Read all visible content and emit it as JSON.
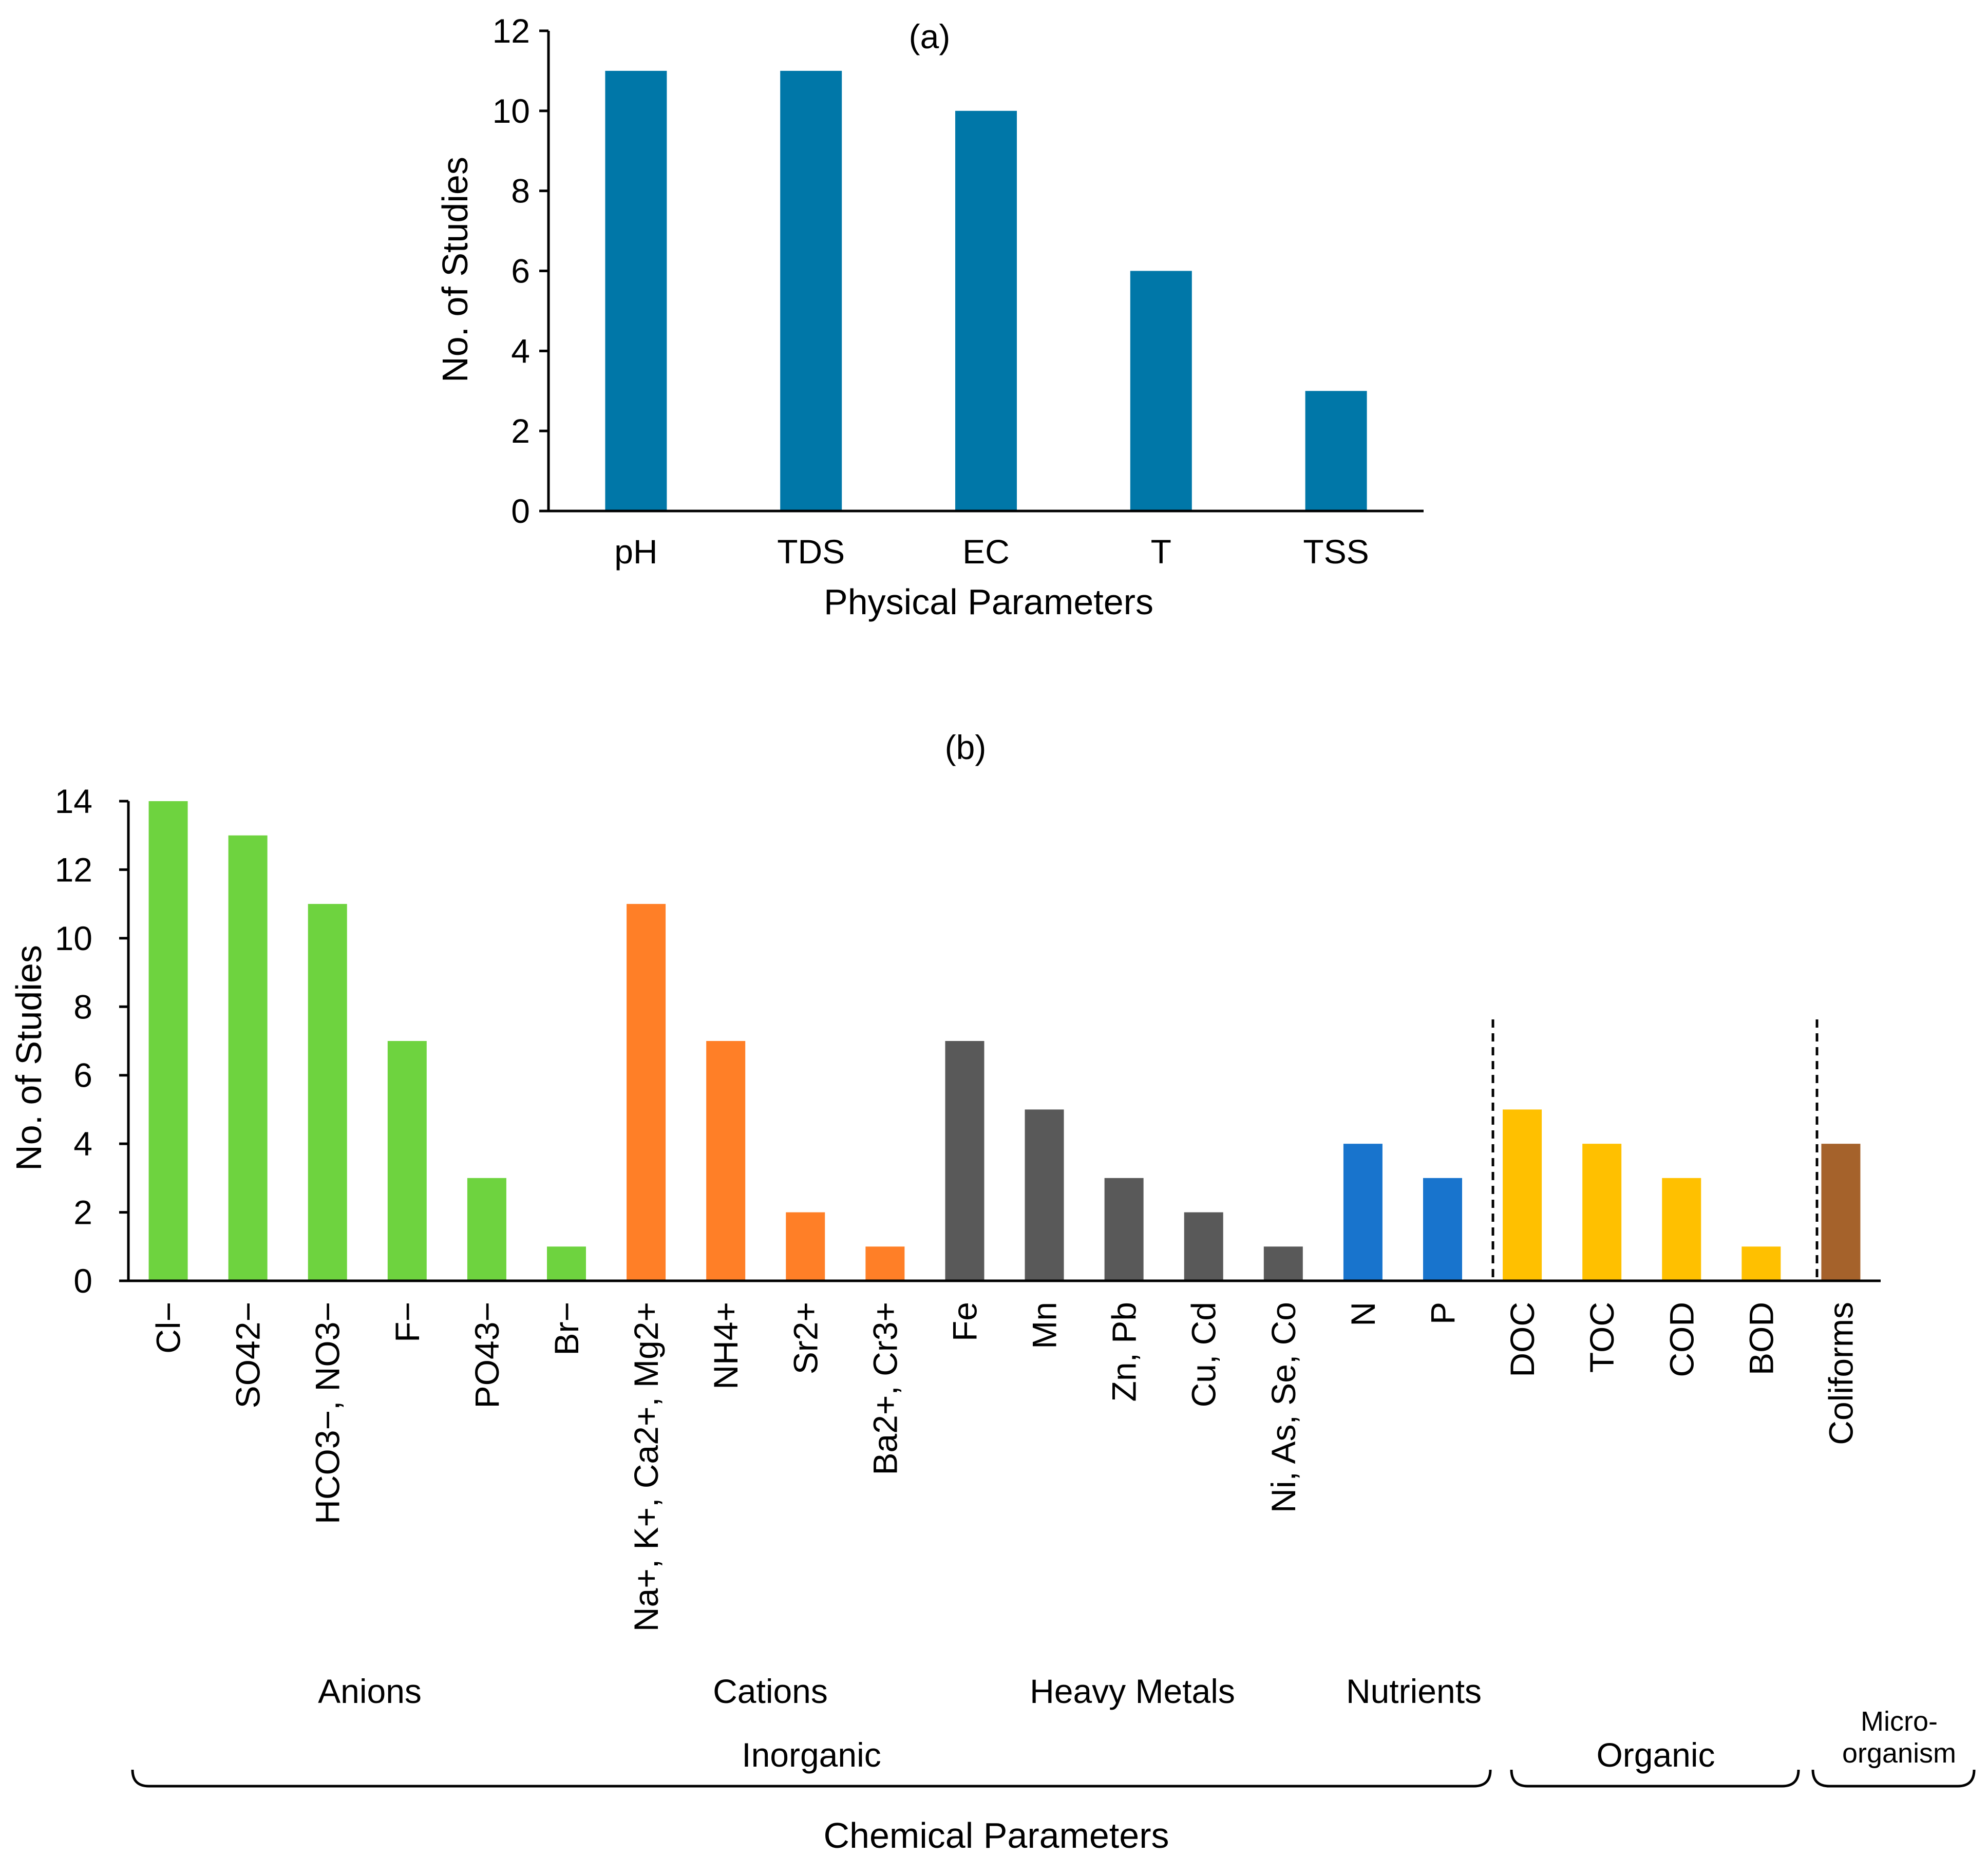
{
  "chart_data": [
    {
      "type": "bar",
      "panel_label": "(a)",
      "xlabel": "Physical Parameters",
      "ylabel": "No. of Studies",
      "ylim": [
        0,
        12
      ],
      "yticks": [
        "0",
        "2",
        "4",
        "6",
        "8",
        "10",
        "12"
      ],
      "grid": false,
      "categories": [
        "pH",
        "TDS",
        "EC",
        "T",
        "TSS"
      ],
      "values": [
        11,
        11,
        10,
        6,
        3
      ],
      "color": "#0077A8"
    },
    {
      "type": "bar",
      "panel_label": "(b)",
      "xlabel": "Chemical Parameters",
      "ylabel": "No. of Studies",
      "ylim": [
        0,
        14
      ],
      "yticks": [
        "0",
        "2",
        "4",
        "6",
        "8",
        "10",
        "12",
        "14"
      ],
      "grid": false,
      "categories": [
        "Cl−",
        "SO42−",
        "HCO3−, NO3−",
        "F−",
        "PO43−",
        "Br−",
        "Na+, K+, Ca2+, Mg2+",
        "NH4+",
        "Sr2+",
        "Ba2+, Cr3+",
        "Fe",
        "Mn",
        "Zn, Pb",
        "Cu, Cd",
        "Ni, As, Se, Co",
        "N",
        "P",
        "DOC",
        "TOC",
        "COD",
        "BOD",
        "Coliforms"
      ],
      "values": [
        14,
        13,
        11,
        7,
        3,
        1,
        11,
        7,
        2,
        1,
        7,
        5,
        3,
        2,
        1,
        4,
        3,
        5,
        4,
        3,
        1,
        4
      ],
      "category_groups": [
        0,
        0,
        0,
        0,
        0,
        0,
        1,
        1,
        1,
        1,
        2,
        2,
        2,
        2,
        2,
        3,
        3,
        4,
        4,
        4,
        4,
        5
      ],
      "subgroups": [
        {
          "label": "Anions",
          "color": "#6ED33F"
        },
        {
          "label": "Cations",
          "color": "#FF7F27"
        },
        {
          "label": "Heavy Metals",
          "color": "#595959"
        },
        {
          "label": "Nutrients",
          "color": "#1874CD"
        },
        {
          "label": "",
          "color": "#FFC000"
        },
        {
          "label": "",
          "color": "#A5622B"
        }
      ],
      "brackets": [
        {
          "label": "Inorganic"
        },
        {
          "label": "Organic"
        },
        {
          "label_lines": [
            "Micro-",
            "organism"
          ]
        }
      ]
    }
  ]
}
